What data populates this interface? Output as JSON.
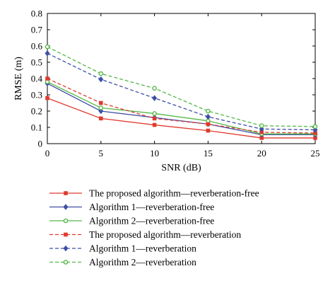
{
  "chart_data": {
    "type": "line",
    "xlabel": "SNR (dB)",
    "ylabel": "RMSE (m)",
    "x": [
      0,
      5,
      10,
      15,
      20,
      25
    ],
    "xlim": [
      0,
      25
    ],
    "ylim": [
      0,
      0.8
    ],
    "xticks": [
      "0",
      "5",
      "10",
      "15",
      "20",
      "25"
    ],
    "yticks": [
      "0",
      "0.1",
      "0.2",
      "0.3",
      "0.4",
      "0.5",
      "0.6",
      "0.7",
      "0.8"
    ],
    "grid": false,
    "legend_position": "below plot",
    "series": [
      {
        "name": "The proposed algorithm—reverberation-free",
        "color": "#e03a2f",
        "dash": "solid",
        "marker": "square",
        "values": [
          0.28,
          0.155,
          0.115,
          0.08,
          0.035,
          0.035
        ]
      },
      {
        "name": "Algorithm 1—reverberation-free",
        "color": "#3f4fa6",
        "dash": "solid",
        "marker": "diamond",
        "values": [
          0.37,
          0.2,
          0.16,
          0.12,
          0.055,
          0.055
        ]
      },
      {
        "name": "Algorithm 2—reverberation-free",
        "color": "#55b848",
        "dash": "solid",
        "marker": "circle",
        "values": [
          0.38,
          0.22,
          0.185,
          0.14,
          0.06,
          0.06
        ]
      },
      {
        "name": "The proposed algorithm—reverberation",
        "color": "#e03a2f",
        "dash": "dashed",
        "marker": "square",
        "values": [
          0.4,
          0.25,
          0.155,
          0.12,
          0.07,
          0.065
        ]
      },
      {
        "name": "Algorithm 1—reverberation",
        "color": "#3f4fa6",
        "dash": "dashed",
        "marker": "diamond",
        "values": [
          0.555,
          0.395,
          0.28,
          0.165,
          0.09,
          0.085
        ]
      },
      {
        "name": "Algorithm 2—reverberation",
        "color": "#55b848",
        "dash": "dashed",
        "marker": "circle",
        "values": [
          0.595,
          0.43,
          0.34,
          0.2,
          0.11,
          0.105
        ]
      }
    ]
  }
}
